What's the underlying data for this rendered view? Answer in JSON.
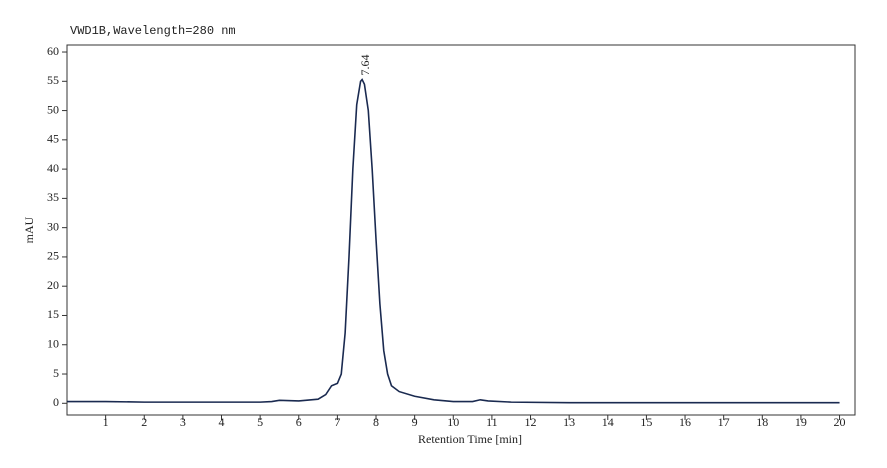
{
  "chart_data": {
    "type": "line",
    "title": "VWD1B,Wavelength=280 nm",
    "xlabel": "Retention Time [min]",
    "ylabel": "mAU",
    "x": [
      0,
      1,
      2,
      3,
      4,
      5,
      5.3,
      5.5,
      6,
      6.5,
      6.7,
      6.85,
      7.0,
      7.1,
      7.2,
      7.3,
      7.4,
      7.5,
      7.6,
      7.64,
      7.7,
      7.8,
      7.9,
      8.0,
      8.1,
      8.2,
      8.3,
      8.4,
      8.6,
      9,
      9.5,
      10,
      10.5,
      10.7,
      10.9,
      11.5,
      13,
      15,
      17,
      20
    ],
    "series": [
      {
        "color": "#1a2a50",
        "values": [
          0.3,
          0.3,
          0.2,
          0.2,
          0.2,
          0.2,
          0.3,
          0.5,
          0.4,
          0.7,
          1.5,
          3.0,
          3.4,
          5,
          12,
          25,
          40,
          51,
          55,
          55.3,
          54.5,
          50,
          40,
          28,
          17,
          9,
          5,
          3,
          2,
          1.2,
          0.6,
          0.3,
          0.3,
          0.6,
          0.4,
          0.2,
          0.1,
          0.1,
          0.1,
          0.1
        ]
      }
    ],
    "annotations": [
      {
        "x": 7.64,
        "y": 55.3,
        "text": "7.64"
      }
    ],
    "xlim": [
      0,
      20.4
    ],
    "ylim": [
      -2,
      61.2
    ],
    "xticks": [
      1,
      2,
      3,
      4,
      5,
      6,
      7,
      8,
      9,
      10,
      11,
      12,
      13,
      14,
      15,
      16,
      17,
      18,
      19,
      20
    ],
    "yticks": [
      0,
      5,
      10,
      15,
      20,
      25,
      30,
      35,
      40,
      45,
      50,
      55,
      60
    ]
  }
}
